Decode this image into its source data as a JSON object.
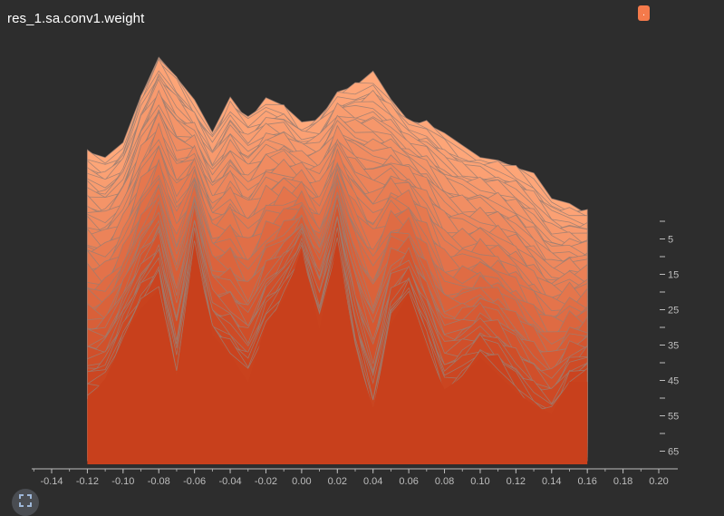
{
  "title": "res_1.sa.conv1.weight",
  "legend_chip_label": ".",
  "icons": {
    "fullscreen": "expand-icon"
  },
  "colors": {
    "background": "#2d2d2d",
    "back_slice": "#ffa87a",
    "front_slice": "#c8401c",
    "slice_stroke": "#9a7f73",
    "axis": "#bdbdbd",
    "text": "#ffffff"
  },
  "chart_data": {
    "type": "area",
    "title": "res_1.sa.conv1.weight",
    "x_ticks": [
      "-0.14",
      "-0.12",
      "-0.10",
      "-0.08",
      "-0.06",
      "-0.04",
      "-0.02",
      "0.00",
      "0.02",
      "0.04",
      "0.06",
      "0.08",
      "0.10",
      "0.12",
      "0.14",
      "0.16",
      "0.18",
      "0.20"
    ],
    "xlim": [
      -0.15,
      0.2
    ],
    "y_ticks": [
      "",
      "5",
      "",
      "15",
      "",
      "25",
      "",
      "35",
      "",
      "45",
      "",
      "55",
      "",
      "65"
    ],
    "steps_range": [
      0,
      68
    ],
    "x": [
      -0.12,
      -0.11,
      -0.1,
      -0.09,
      -0.08,
      -0.07,
      -0.06,
      -0.05,
      -0.04,
      -0.03,
      -0.02,
      -0.01,
      0.0,
      0.01,
      0.02,
      0.03,
      0.04,
      0.05,
      0.06,
      0.07,
      0.08,
      0.09,
      0.1,
      0.11,
      0.12,
      0.13,
      0.14,
      0.15,
      0.16
    ],
    "back_slice_heights": [
      0.42,
      0.37,
      0.46,
      0.78,
      1.0,
      0.88,
      0.7,
      0.55,
      0.75,
      0.64,
      0.72,
      0.7,
      0.58,
      0.65,
      0.78,
      0.82,
      0.88,
      0.75,
      0.62,
      0.6,
      0.52,
      0.44,
      0.4,
      0.38,
      0.34,
      0.26,
      0.14,
      0.1,
      0.08
    ],
    "front_slice_heights": [
      0.3,
      0.34,
      0.52,
      0.66,
      0.76,
      0.38,
      0.92,
      0.54,
      0.46,
      0.38,
      0.58,
      0.7,
      0.88,
      0.6,
      0.94,
      0.5,
      0.2,
      0.6,
      0.72,
      0.52,
      0.3,
      0.36,
      0.44,
      0.4,
      0.32,
      0.24,
      0.2,
      0.34,
      0.38
    ],
    "num_slices": 69,
    "grid": false,
    "legend": "top-right"
  }
}
